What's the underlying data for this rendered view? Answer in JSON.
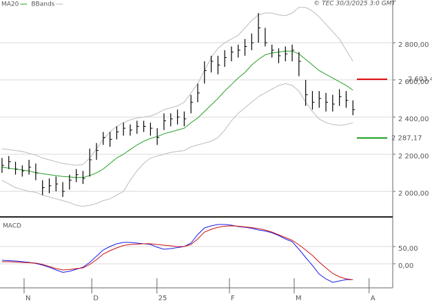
{
  "chart_data": [
    {
      "type": "ohlc",
      "legend": [
        {
          "name": "MA20",
          "color": "#22a022"
        },
        {
          "name": "BBands",
          "color": "#bbbbbb"
        }
      ],
      "annotation": "© TEC 30/3/2025 3:0 GMT",
      "xlim": [
        -0.3,
        57.9
      ],
      "ylim": [
        1870,
        3030
      ],
      "yticks": [
        {
          "value": 2000,
          "label": "2 000,00"
        },
        {
          "value": 2200,
          "label": "2 200,00"
        },
        {
          "value": 2400,
          "label": "2 400,00"
        },
        {
          "value": 2600,
          "label": "2 600,00"
        },
        {
          "value": 2800,
          "label": "2 800,00"
        }
      ],
      "grid": true,
      "color": "#000000",
      "high": [
        2180,
        2190,
        2160,
        2140,
        2170,
        2150,
        2060,
        2070,
        2080,
        2050,
        2090,
        2120,
        2110,
        2230,
        2260,
        2320,
        2320,
        2350,
        2370,
        2360,
        2380,
        2380,
        2370,
        2340,
        2420,
        2420,
        2440,
        2430,
        2520,
        2580,
        2700,
        2730,
        2730,
        2760,
        2780,
        2790,
        2820,
        2850,
        2960,
        2880,
        2790,
        2770,
        2780,
        2790,
        2750,
        2600,
        2540,
        2540,
        2530,
        2520,
        2550,
        2540,
        2490
      ],
      "low": [
        2100,
        2120,
        2090,
        2080,
        2090,
        2060,
        1980,
        1990,
        2000,
        1970,
        2010,
        2050,
        2040,
        2080,
        2170,
        2250,
        2240,
        2280,
        2300,
        2300,
        2310,
        2320,
        2300,
        2250,
        2330,
        2350,
        2360,
        2350,
        2420,
        2480,
        2580,
        2640,
        2630,
        2670,
        2700,
        2720,
        2730,
        2760,
        2800,
        2780,
        2720,
        2690,
        2700,
        2700,
        2620,
        2460,
        2440,
        2450,
        2430,
        2430,
        2460,
        2450,
        2410
      ],
      "close": [
        2140,
        2160,
        2120,
        2110,
        2130,
        2100,
        2020,
        2030,
        2040,
        2000,
        2060,
        2090,
        2070,
        2170,
        2220,
        2290,
        2280,
        2320,
        2340,
        2330,
        2350,
        2350,
        2340,
        2290,
        2380,
        2390,
        2400,
        2390,
        2480,
        2530,
        2650,
        2700,
        2680,
        2720,
        2750,
        2760,
        2780,
        2800,
        2880,
        2800,
        2760,
        2730,
        2740,
        2760,
        2700,
        2520,
        2480,
        2500,
        2480,
        2470,
        2510,
        2490,
        2440
      ],
      "series": [
        {
          "name": "MA20",
          "color": "#22a022",
          "values": [
            2130,
            2125,
            2120,
            2115,
            2110,
            2100,
            2095,
            2090,
            2085,
            2080,
            2078,
            2075,
            2075,
            2085,
            2100,
            2120,
            2150,
            2180,
            2200,
            2225,
            2250,
            2270,
            2285,
            2295,
            2310,
            2320,
            2330,
            2340,
            2370,
            2395,
            2430,
            2465,
            2500,
            2540,
            2575,
            2610,
            2640,
            2680,
            2710,
            2735,
            2745,
            2750,
            2755,
            2755,
            2740,
            2710,
            2680,
            2650,
            2630,
            2610,
            2590,
            2570,
            2545
          ]
        },
        {
          "name": "BBands",
          "color": "#bbbbbb",
          "values": [
            2230,
            2225,
            2220,
            2215,
            2205,
            2195,
            2180,
            2170,
            2160,
            2150,
            2145,
            2140,
            2145,
            2180,
            2230,
            2280,
            2320,
            2350,
            2370,
            2385,
            2395,
            2400,
            2405,
            2420,
            2440,
            2450,
            2460,
            2480,
            2530,
            2580,
            2650,
            2720,
            2770,
            2800,
            2820,
            2840,
            2880,
            2920,
            2950,
            2960,
            2960,
            2950,
            2945,
            2960,
            2990,
            2990,
            2970,
            2940,
            2900,
            2860,
            2820,
            2760,
            2700
          ]
        },
        {
          "name": "BBands",
          "color": "#bbbbbb",
          "values": [
            2060,
            2040,
            2020,
            2010,
            2000,
            1995,
            1980,
            1970,
            1960,
            1950,
            1940,
            1925,
            1920,
            1925,
            1935,
            1950,
            1960,
            1980,
            2000,
            2060,
            2110,
            2150,
            2180,
            2190,
            2200,
            2210,
            2215,
            2220,
            2240,
            2250,
            2260,
            2270,
            2290,
            2330,
            2380,
            2420,
            2450,
            2480,
            2510,
            2530,
            2550,
            2570,
            2580,
            2570,
            2540,
            2480,
            2430,
            2390,
            2370,
            2360,
            2355,
            2360,
            2370
          ]
        }
      ],
      "markers": [
        {
          "value": 2603.4,
          "label": "2 603,4",
          "color": "#dd0000"
        },
        {
          "value": 2287.17,
          "label": "2 287,17",
          "color": "#119911"
        }
      ]
    },
    {
      "type": "line",
      "title": "MACD",
      "xlim": [
        -0.3,
        57.9
      ],
      "xticks": [
        {
          "value": 3.27,
          "label": "N"
        },
        {
          "value": 13.3,
          "label": "D"
        },
        {
          "value": 22.96,
          "label": "25"
        },
        {
          "value": 33.7,
          "label": "F"
        },
        {
          "value": 43.3,
          "label": "M"
        },
        {
          "value": 54.4,
          "label": "A"
        }
      ],
      "ylim": [
        -70,
        130
      ],
      "yticks": [
        {
          "value": 0,
          "label": "0,00"
        },
        {
          "value": 50,
          "label": "50,00"
        }
      ],
      "grid": true,
      "series": [
        {
          "color": "#1a1aee",
          "values": [
            10,
            9,
            8,
            6,
            4,
            1,
            -4,
            -10,
            -18,
            -25,
            -22,
            -16,
            -10,
            4,
            22,
            40,
            50,
            58,
            62,
            62,
            60,
            58,
            56,
            48,
            42,
            44,
            47,
            50,
            60,
            85,
            104,
            110,
            114,
            114,
            112,
            108,
            106,
            103,
            98,
            95,
            90,
            82,
            72,
            64,
            42,
            18,
            -5,
            -30,
            -44,
            -54,
            -50,
            -46,
            -46
          ]
        },
        {
          "color": "#cc1111",
          "values": [
            6,
            6,
            5,
            4,
            3,
            2,
            -2,
            -8,
            -14,
            -18,
            -17,
            -14,
            -12,
            -2,
            12,
            28,
            38,
            46,
            53,
            56,
            57,
            58,
            58,
            56,
            54,
            52,
            50,
            50,
            56,
            72,
            92,
            100,
            106,
            109,
            110,
            109,
            107,
            105,
            102,
            98,
            92,
            84,
            76,
            68,
            55,
            40,
            24,
            5,
            -12,
            -28,
            -38,
            -44,
            -46
          ]
        }
      ]
    }
  ]
}
